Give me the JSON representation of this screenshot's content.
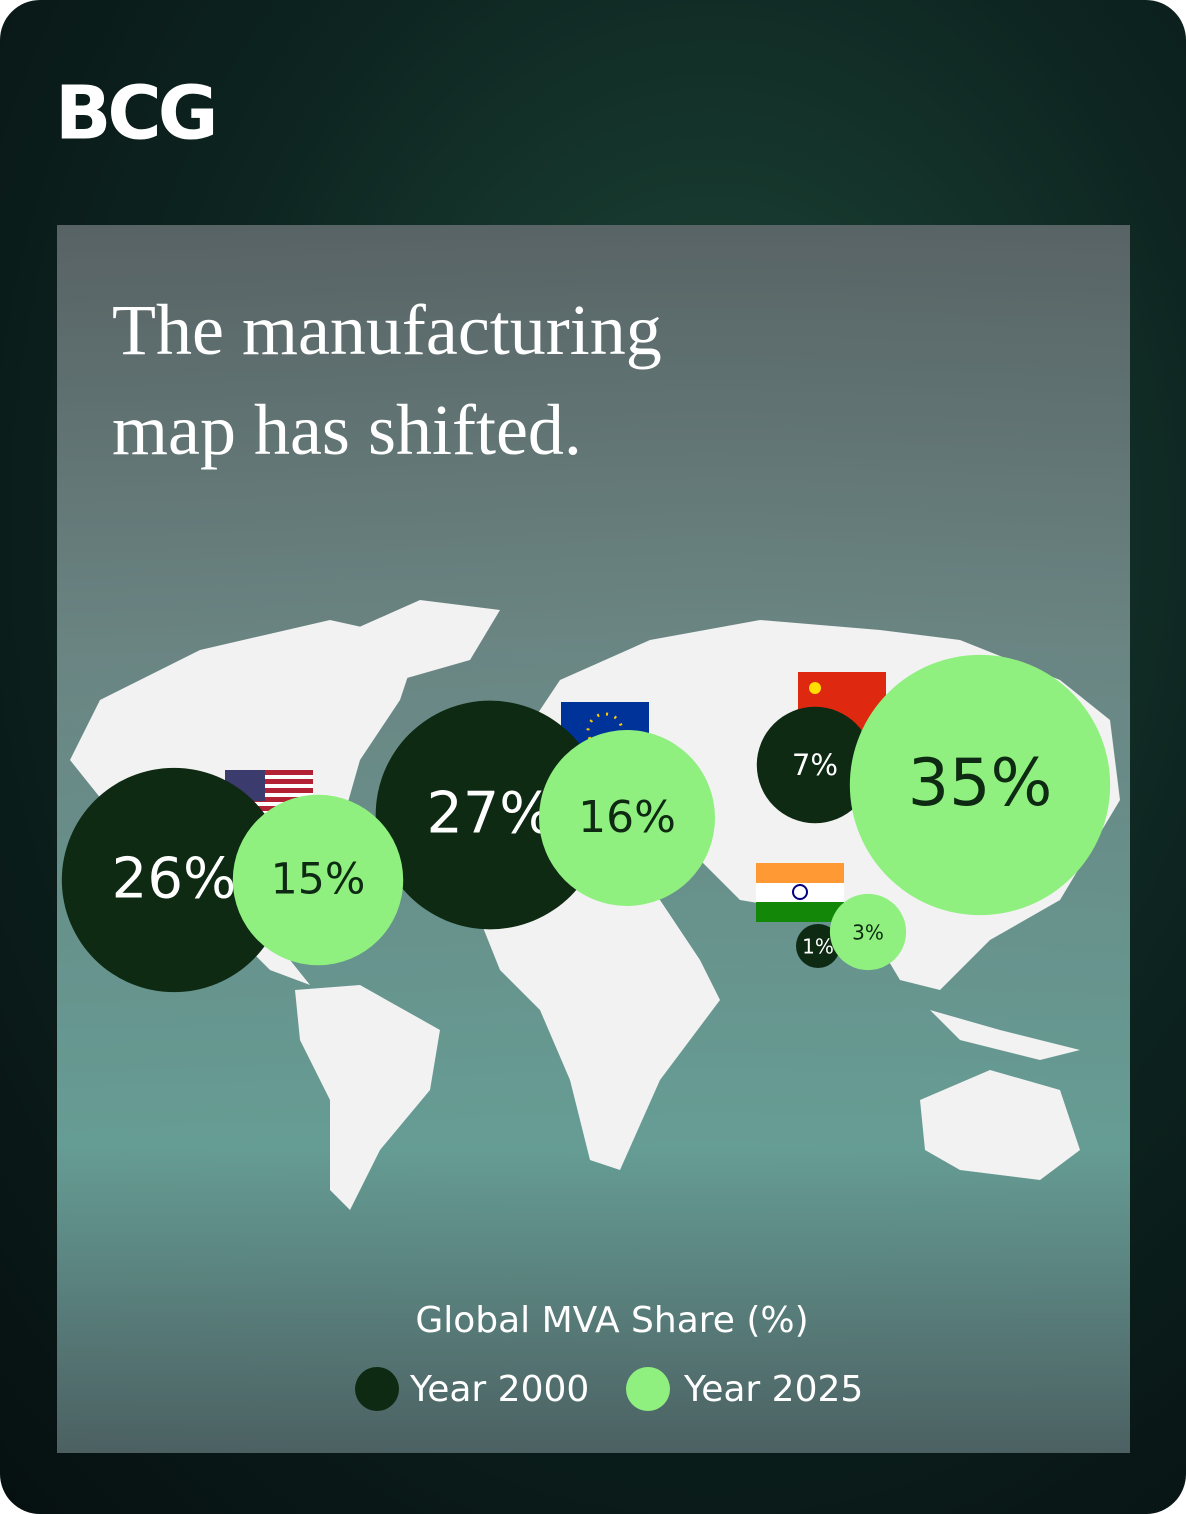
{
  "logo": "BCG",
  "chart_data": {
    "type": "bubble-map",
    "title": "The manufacturing map has shifted.",
    "legend_title": "Global MVA Share (%)",
    "series": [
      {
        "name": "Year 2000",
        "color": "#0e2a13",
        "values": [
          26,
          27,
          7,
          1
        ],
        "value_labels": [
          "26%",
          "27%",
          "7%",
          "1%"
        ],
        "label_color": "#ffffff"
      },
      {
        "name": "Year 2025",
        "color": "#8ff07f",
        "values": [
          15,
          16,
          35,
          3
        ],
        "value_labels": [
          "15%",
          "16%",
          "35%",
          "3%"
        ],
        "label_color": "#0e2a13"
      }
    ]
  }
}
